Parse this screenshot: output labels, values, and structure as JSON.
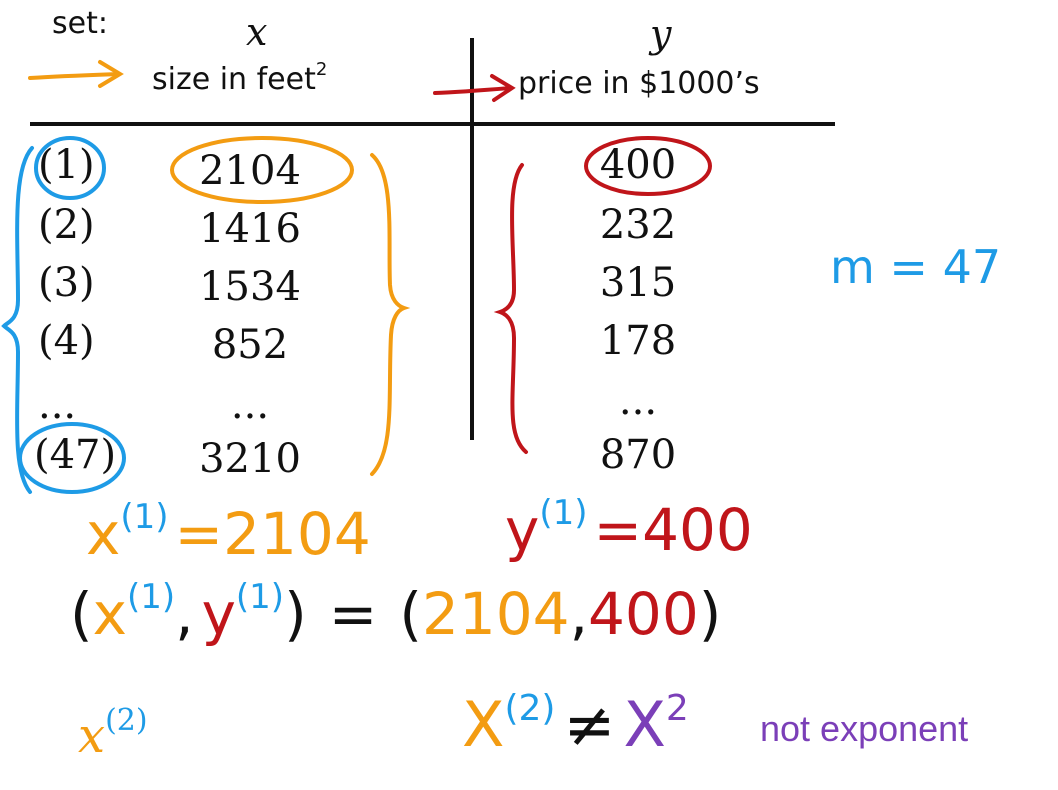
{
  "header": {
    "set_label": "set:",
    "x_var": "x",
    "y_var": "y",
    "x_desc": "size in feet",
    "x_desc_sup": "2",
    "y_desc": "price in $1000’s"
  },
  "rows": [
    {
      "index": "(1)",
      "x": "2104",
      "y": "400"
    },
    {
      "index": "(2)",
      "x": "1416",
      "y": "232"
    },
    {
      "index": "(3)",
      "x": "1534",
      "y": "315"
    },
    {
      "index": "(4)",
      "x": "852",
      "y": "178"
    },
    {
      "index": "...",
      "x": "...",
      "y": "..."
    },
    {
      "index": "(47)",
      "x": "3210",
      "y": "870"
    }
  ],
  "m_note": "m = 47",
  "eq1": {
    "x": "x",
    "sup": "(1)",
    "eq": "=",
    "val": "2104"
  },
  "eq2": {
    "y": "y",
    "sup": "(1)",
    "eq": "=",
    "val": "400"
  },
  "tuple": {
    "open": "(",
    "x": "x",
    "x_sup": "(1)",
    "comma": ",",
    "y": "y",
    "y_sup": "(1)",
    "close": ")",
    "eq": "=",
    "open2": "(",
    "v1": "2104",
    "comma2": ",",
    "v2": "400",
    "close2": ")"
  },
  "x2_note": {
    "x": "x",
    "sup": "(2)"
  },
  "inequality": {
    "x": "X",
    "sup": "(2)",
    "neq": "≠",
    "x2": "X",
    "pow": "2",
    "note": "not exponent"
  },
  "colors": {
    "orange": "#f39c12",
    "red": "#c0151a",
    "blue": "#1e9be6",
    "purple": "#7b3fb8",
    "black": "#111111"
  }
}
